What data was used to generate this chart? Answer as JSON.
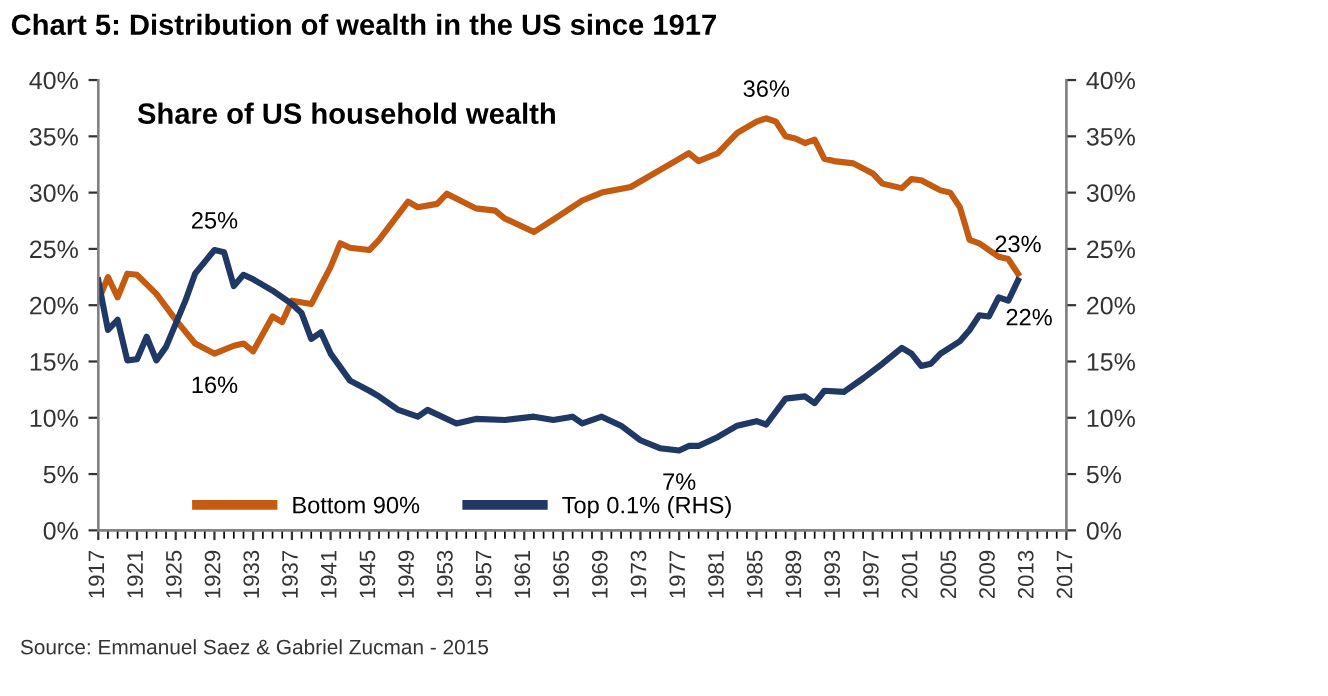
{
  "chart_data": {
    "type": "line",
    "title": "Chart 5: Distribution of wealth in the US since 1917",
    "subtitle": "Share of US household wealth",
    "series": [
      {
        "name": "Bottom 90%",
        "color": "#c55a11",
        "axis": "y",
        "x": [
          1917,
          1918,
          1919,
          1920,
          1921,
          1923,
          1925,
          1927,
          1929,
          1931,
          1932,
          1933,
          1935,
          1936,
          1937,
          1939,
          1941,
          1942,
          1943,
          1945,
          1946,
          1949,
          1950,
          1952,
          1953,
          1956,
          1958,
          1959,
          1962,
          1964,
          1967,
          1969,
          1972,
          1975,
          1977,
          1978,
          1979,
          1981,
          1983,
          1985,
          1986,
          1987,
          1988,
          1989,
          1990,
          1991,
          1992,
          1993,
          1995,
          1997,
          1998,
          2000,
          2001,
          2002,
          2004,
          2005,
          2006,
          2007,
          2008,
          2009,
          2010,
          2011,
          2012
        ],
        "values": [
          20.4,
          22.5,
          20.7,
          22.8,
          22.7,
          21,
          18.7,
          16.6,
          15.7,
          16.4,
          16.6,
          15.9,
          19,
          18.5,
          20.4,
          20.1,
          23.4,
          25.5,
          25.1,
          24.9,
          25.8,
          29.2,
          28.7,
          29,
          29.9,
          28.6,
          28.4,
          27.7,
          26.5,
          27.6,
          29.3,
          30,
          30.5,
          32,
          33,
          33.5,
          32.8,
          33.5,
          35.3,
          36.3,
          36.6,
          36.3,
          35,
          34.8,
          34.4,
          34.7,
          33,
          32.8,
          32.6,
          31.7,
          30.8,
          30.4,
          31.2,
          31.1,
          30.2,
          30,
          28.7,
          25.8,
          25.5,
          24.9,
          24.3,
          24.1,
          22.8
        ]
      },
      {
        "name": "Top 0.1% (RHS)",
        "color": "#1f3864",
        "axis": "y2",
        "x": [
          1917,
          1918,
          1919,
          1920,
          1921,
          1922,
          1923,
          1924,
          1926,
          1927,
          1929,
          1930,
          1931,
          1932,
          1933,
          1935,
          1937,
          1938,
          1939,
          1940,
          1941,
          1943,
          1945,
          1946,
          1948,
          1950,
          1951,
          1954,
          1956,
          1959,
          1962,
          1964,
          1966,
          1967,
          1969,
          1971,
          1973,
          1975,
          1977,
          1978,
          1979,
          1981,
          1983,
          1985,
          1986,
          1988,
          1990,
          1991,
          1992,
          1994,
          1996,
          1998,
          2000,
          2001,
          2002,
          2003,
          2004,
          2006,
          2007,
          2008,
          2009,
          2010,
          2011,
          2012
        ],
        "values": [
          22.2,
          17.8,
          18.7,
          15.1,
          15.2,
          17.2,
          15.1,
          16.3,
          20.4,
          22.8,
          24.9,
          24.7,
          21.7,
          22.7,
          22.3,
          21.3,
          20.1,
          19.3,
          17,
          17.6,
          15.7,
          13.3,
          12.4,
          11.9,
          10.7,
          10.1,
          10.7,
          9.5,
          9.9,
          9.8,
          10.1,
          9.8,
          10.1,
          9.5,
          10.1,
          9.3,
          8,
          7.3,
          7.1,
          7.5,
          7.5,
          8.3,
          9.3,
          9.7,
          9.4,
          11.7,
          11.9,
          11.3,
          12.4,
          12.3,
          13.5,
          14.8,
          16.2,
          15.7,
          14.6,
          14.8,
          15.7,
          16.8,
          17.8,
          19.1,
          19,
          20.7,
          20.4,
          22.2
        ]
      }
    ],
    "xlim": [
      1917,
      2017
    ],
    "xticks": [
      1917,
      1921,
      1925,
      1929,
      1933,
      1937,
      1941,
      1945,
      1949,
      1953,
      1957,
      1961,
      1965,
      1969,
      1973,
      1977,
      1981,
      1985,
      1989,
      1993,
      1997,
      2001,
      2005,
      2009,
      2013,
      2017
    ],
    "ylim": [
      0,
      40
    ],
    "yticks": [
      {
        "value": 0,
        "label": "0%"
      },
      {
        "value": 5,
        "label": "5%"
      },
      {
        "value": 10,
        "label": "10%"
      },
      {
        "value": 15,
        "label": "15%"
      },
      {
        "value": 20,
        "label": "20%"
      },
      {
        "value": 25,
        "label": "25%"
      },
      {
        "value": 30,
        "label": "30%"
      },
      {
        "value": 35,
        "label": "35%"
      },
      {
        "value": 40,
        "label": "40%"
      }
    ],
    "y2lim": [
      0,
      40
    ],
    "y2ticks": [
      {
        "value": 0,
        "label": "0%"
      },
      {
        "value": 5,
        "label": "5%"
      },
      {
        "value": 10,
        "label": "10%"
      },
      {
        "value": 15,
        "label": "15%"
      },
      {
        "value": 20,
        "label": "20%"
      },
      {
        "value": 25,
        "label": "25%"
      },
      {
        "value": 30,
        "label": "30%"
      },
      {
        "value": 35,
        "label": "35%"
      },
      {
        "value": 40,
        "label": "40%"
      }
    ],
    "legend": "bottom left",
    "grid": false,
    "marker": "none",
    "line_style": "solid",
    "annotations": [
      {
        "text": "25%",
        "x": 1929,
        "y": 24.9
      },
      {
        "text": "16%",
        "x": 1929,
        "y": 15.7
      },
      {
        "text": "36%",
        "x": 1986,
        "y": 36.6
      },
      {
        "text": "7%",
        "x": 1977,
        "y": 7.1
      },
      {
        "text": "23%",
        "x": 2012,
        "y": 22.8
      },
      {
        "text": "22%",
        "x": 2012,
        "y": 22.2
      },
      "Source: Emmanuel Saez & Gabriel Zucman - 2015"
    ]
  }
}
